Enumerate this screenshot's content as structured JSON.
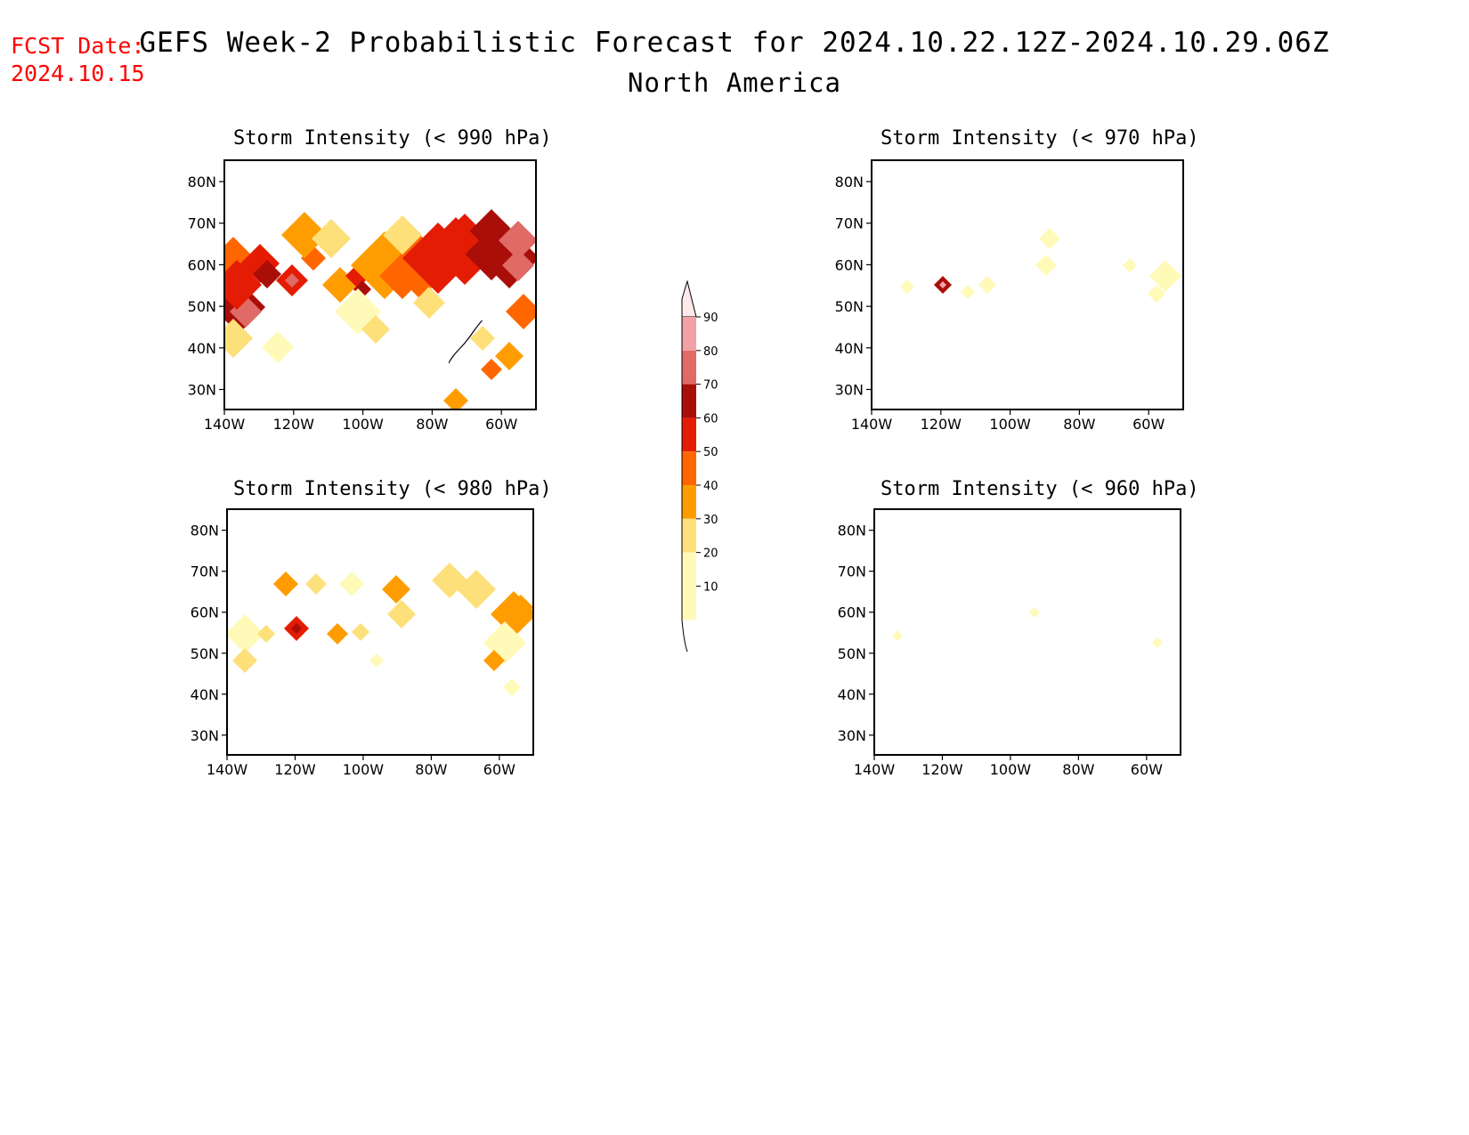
{
  "header": {
    "fcst_label": "FCST Date:",
    "fcst_date": "2024.10.15",
    "title": "GEFS Week-2 Probabilistic Forecast for 2024.10.22.12Z-2024.10.29.06Z",
    "subtitle": "North America"
  },
  "axes": {
    "lat_ticks": [
      "80N",
      "70N",
      "60N",
      "50N",
      "40N",
      "30N"
    ],
    "lon_ticks": [
      "140W",
      "120W",
      "100W",
      "80W",
      "60W"
    ]
  },
  "panels": [
    {
      "title": "Storm Intensity (< 990 hPa)"
    },
    {
      "title": "Storm Intensity (< 970 hPa)"
    },
    {
      "title": "Storm Intensity (< 980 hPa)"
    },
    {
      "title": "Storm Intensity (< 960 hPa)"
    }
  ],
  "colorbar": {
    "labels": [
      "90",
      "80",
      "70",
      "60",
      "50",
      "40",
      "30",
      "20",
      "10"
    ],
    "colors": [
      "#fde8ea",
      "#f2a1a6",
      "#e06a66",
      "#aa0e09",
      "#e41c04",
      "#ff6600",
      "#ff9d00",
      "#fde07a",
      "#fffab8"
    ]
  }
}
